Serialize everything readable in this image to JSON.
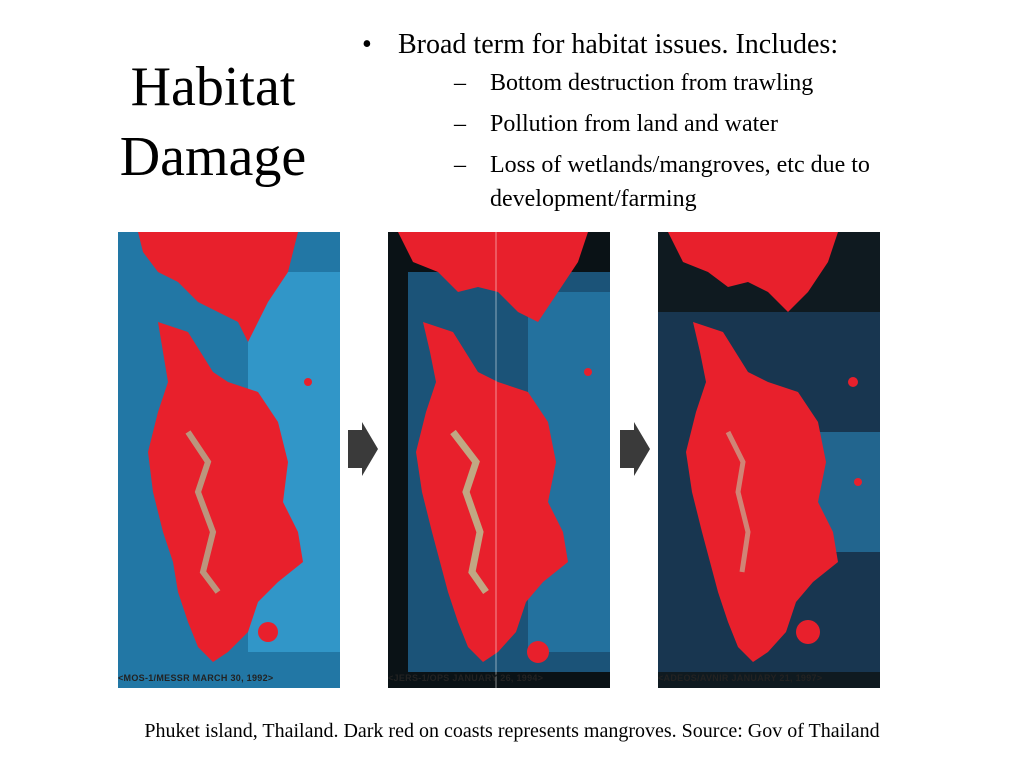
{
  "slide": {
    "title_line1": "Habitat",
    "title_line2": "Damage",
    "bullet": {
      "marker": "•",
      "text": "Broad term for habitat issues.  Includes:",
      "subitems": [
        {
          "dash": "–",
          "text": "Bottom destruction from trawling"
        },
        {
          "dash": "–",
          "text": "Pollution from land and water"
        },
        {
          "dash": "–",
          "text": "Loss of wetlands/mangroves, etc due to development/farming"
        }
      ]
    },
    "images": [
      {
        "label": "<MOS-1/MESSR MARCH 30, 1992>",
        "sea_color": "#2f8fc2",
        "land_color": "#e8202c"
      },
      {
        "label": "<JERS-1/OPS JANUARY 26, 1994>",
        "sea_color": "#1f5f8a",
        "land_color": "#e8202c"
      },
      {
        "label": "<ADEOS/AVNIR JANUARY 21, 1997>",
        "sea_color": "#1a3a55",
        "land_color": "#e8202c"
      }
    ],
    "footer": "Phuket island, Thailand.  Dark red on coasts represents mangroves.  Source: Gov of Thailand"
  }
}
